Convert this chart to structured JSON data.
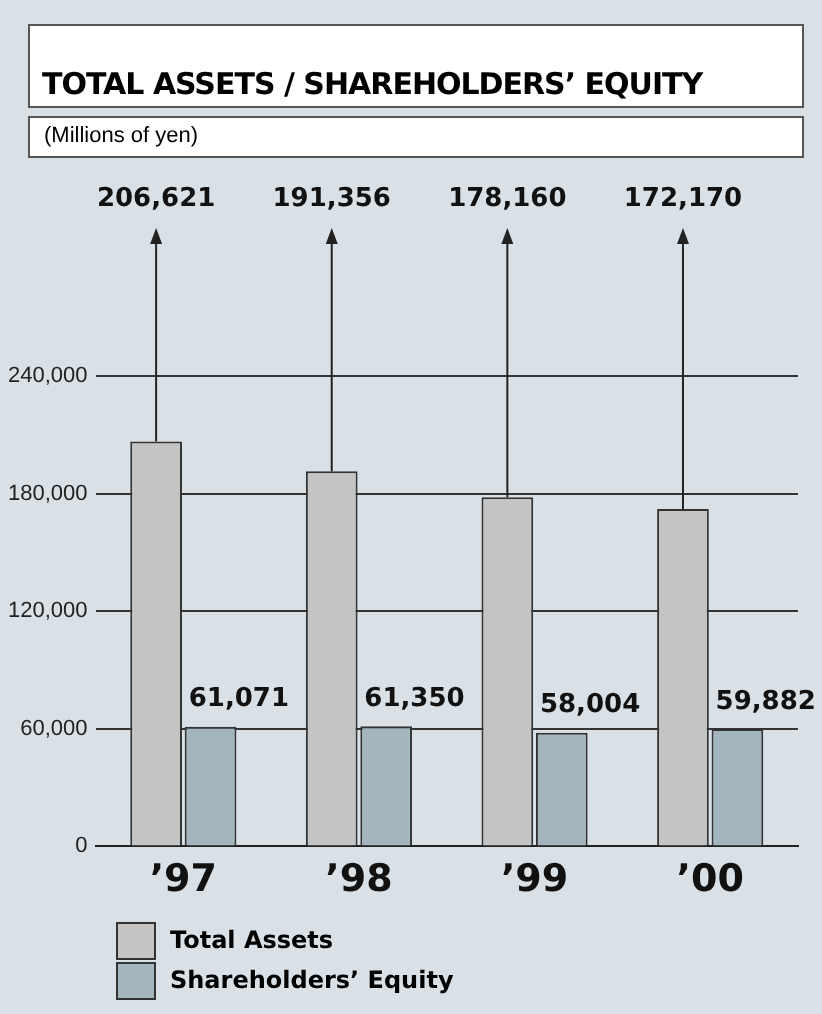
{
  "chart_data": {
    "type": "bar",
    "title": "TOTAL ASSETS / SHAREHOLDERS’ EQUITY",
    "subtitle": "(Millions of yen)",
    "categories": [
      "’97",
      "’98",
      "’99",
      "’00"
    ],
    "series": [
      {
        "name": "Total Assets",
        "color": "#c4c4c4",
        "values": [
          206621,
          191356,
          178160,
          172170
        ]
      },
      {
        "name": "Shareholders’ Equity",
        "color": "#a3b6be",
        "values": [
          61071,
          61350,
          58004,
          59882
        ],
        "value_labels": [
          "61,071",
          "61,350",
          "58,004",
          "59,882"
        ]
      }
    ],
    "annotations": [
      "206,621",
      "191,356",
      "178,160",
      "172,170"
    ],
    "ylim": [
      0,
      240000
    ],
    "yticks": [
      0,
      {
        "value": 60000,
        "label": "60,000"
      },
      {
        "value": 120000,
        "label": "120,000"
      },
      {
        "value": 180000,
        "label": "180,000"
      },
      {
        "value": 240000,
        "label": "240,000"
      }
    ],
    "grid": "y",
    "legend": "bottom left"
  }
}
